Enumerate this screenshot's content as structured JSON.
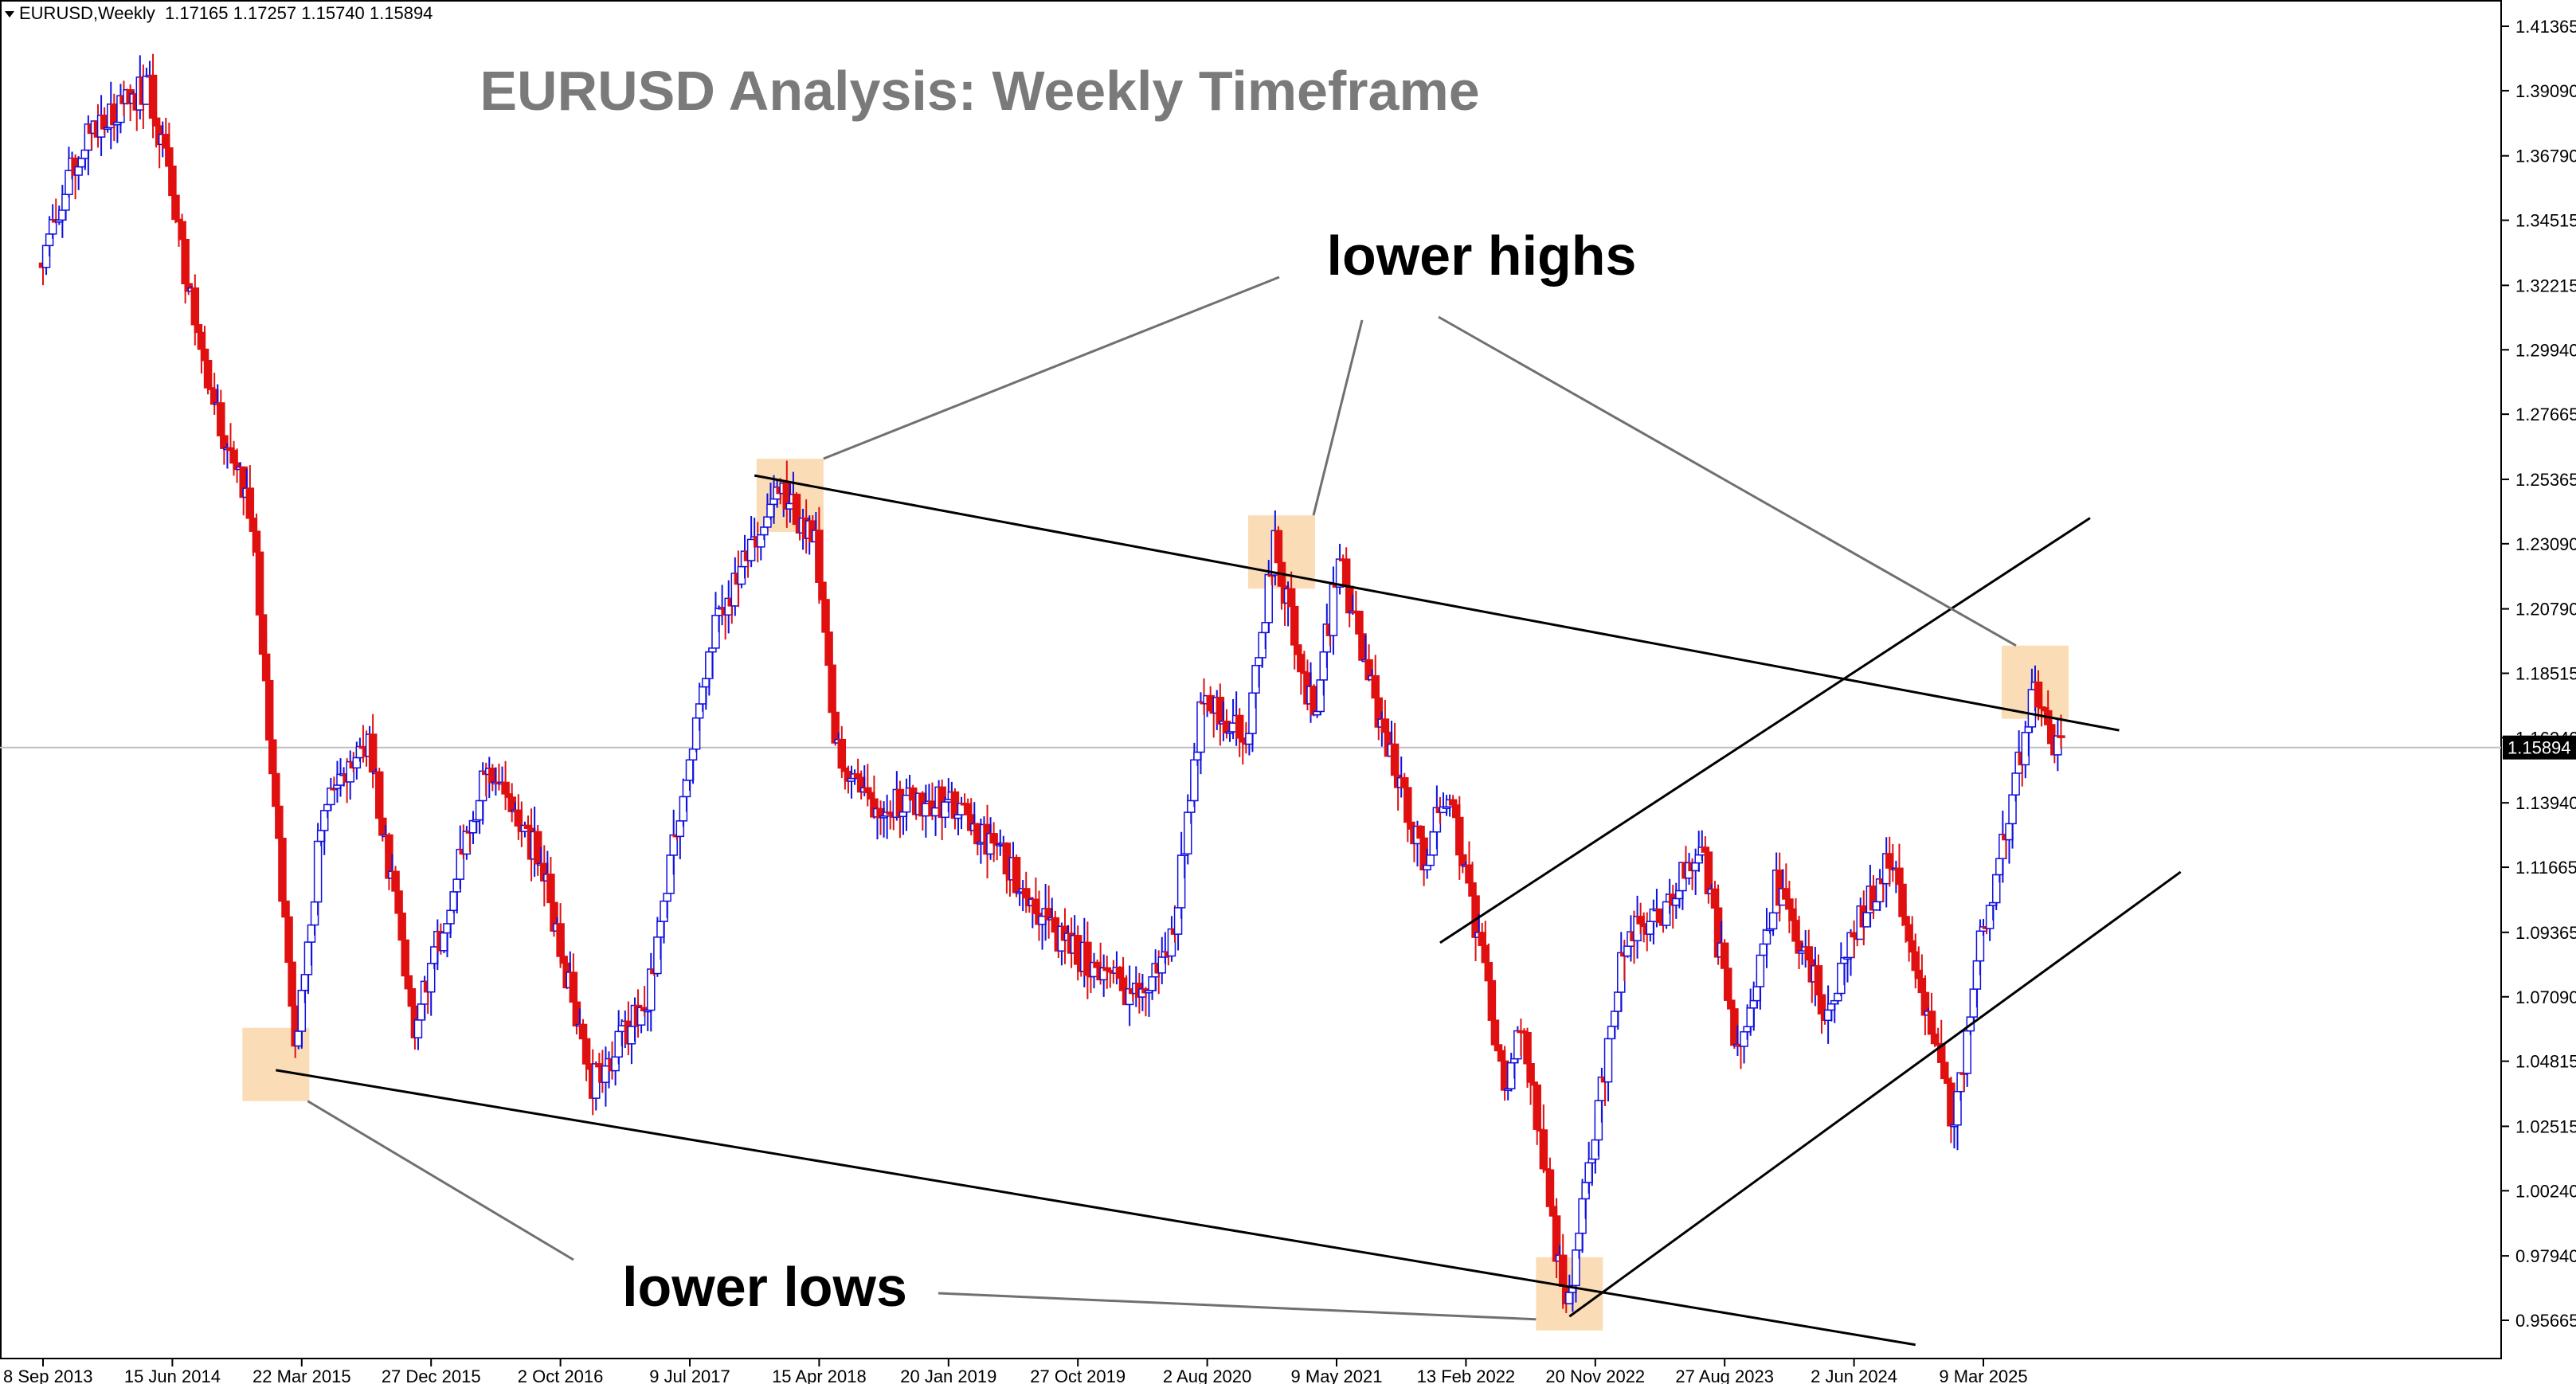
{
  "header": {
    "symbol": "EURUSD,Weekly",
    "ohlc": "1.17165 1.17257 1.15740 1.15894"
  },
  "colors": {
    "bull": "#1010e0",
    "bear": "#e01010",
    "highlight": "#f9d9ae",
    "trendline": "#000000",
    "pointer": "#707070",
    "title": "#7a7a7a",
    "price_line": "#c0c0c0"
  },
  "chart_data": {
    "type": "candlestick",
    "title": "EURUSD Analysis: Weekly Timeframe",
    "xlabel": "",
    "ylabel": "",
    "grid": false,
    "current_price": "1.15894",
    "y_ticks": [
      "1.41365",
      "1.39090",
      "1.36790",
      "1.34515",
      "1.32215",
      "1.29940",
      "1.27665",
      "1.25365",
      "1.23090",
      "1.20790",
      "1.18515",
      "1.16240",
      "1.13940",
      "1.11665",
      "1.09365",
      "1.07090",
      "1.04815",
      "1.02515",
      "1.00240",
      "0.97940",
      "0.95665"
    ],
    "x_ticks": [
      "8 Sep 2013",
      "15 Jun 2014",
      "22 Mar 2015",
      "27 Dec 2015",
      "2 Oct 2016",
      "9 Jul 2017",
      "15 Apr 2018",
      "20 Jan 2019",
      "27 Oct 2019",
      "2 Aug 2020",
      "9 May 2021",
      "13 Feb 2022",
      "20 Nov 2022",
      "27 Aug 2023",
      "2 Jun 2024",
      "9 Mar 2025"
    ],
    "x_tick_dates": [
      "2013-09-08",
      "2014-06-15",
      "2015-03-22",
      "2015-12-27",
      "2016-10-02",
      "2017-07-09",
      "2018-04-15",
      "2019-01-20",
      "2019-10-27",
      "2020-08-02",
      "2021-05-09",
      "2022-02-13",
      "2022-11-20",
      "2023-08-27",
      "2024-06-02",
      "2025-03-09"
    ],
    "price_path": [
      [
        "2013-09-08",
        1.33
      ],
      [
        "2013-12-01",
        1.37
      ],
      [
        "2014-03-15",
        1.388
      ],
      [
        "2014-05-04",
        1.392
      ],
      [
        "2014-06-15",
        1.36
      ],
      [
        "2014-09-01",
        1.29
      ],
      [
        "2014-12-14",
        1.24
      ],
      [
        "2015-03-15",
        1.05
      ],
      [
        "2015-05-17",
        1.14
      ],
      [
        "2015-08-23",
        1.16
      ],
      [
        "2015-11-29",
        1.06
      ],
      [
        "2016-05-01",
        1.15
      ],
      [
        "2016-08-28",
        1.12
      ],
      [
        "2016-12-18",
        1.04
      ],
      [
        "2017-04-16",
        1.07
      ],
      [
        "2017-07-09",
        1.15
      ],
      [
        "2017-09-10",
        1.2
      ],
      [
        "2018-01-28",
        1.25
      ],
      [
        "2018-04-15",
        1.23
      ],
      [
        "2018-05-27",
        1.16
      ],
      [
        "2018-08-12",
        1.14
      ],
      [
        "2019-01-20",
        1.14
      ],
      [
        "2019-05-26",
        1.12
      ],
      [
        "2019-10-01",
        1.09
      ],
      [
        "2020-03-20",
        1.07
      ],
      [
        "2020-05-24",
        1.09
      ],
      [
        "2020-08-02",
        1.18
      ],
      [
        "2020-11-01",
        1.16
      ],
      [
        "2021-01-03",
        1.23
      ],
      [
        "2021-03-28",
        1.17
      ],
      [
        "2021-05-23",
        1.225
      ],
      [
        "2021-08-15",
        1.17
      ],
      [
        "2021-11-21",
        1.12
      ],
      [
        "2022-01-16",
        1.145
      ],
      [
        "2022-05-15",
        1.04
      ],
      [
        "2022-06-26",
        1.06
      ],
      [
        "2022-09-25",
        0.96
      ],
      [
        "2022-10-16",
        0.98
      ],
      [
        "2023-01-29",
        1.09
      ],
      [
        "2023-04-23",
        1.1
      ],
      [
        "2023-07-16",
        1.125
      ],
      [
        "2023-10-01",
        1.05
      ],
      [
        "2023-12-24",
        1.11
      ],
      [
        "2024-04-14",
        1.065
      ],
      [
        "2024-06-02",
        1.09
      ],
      [
        "2024-08-25",
        1.12
      ],
      [
        "2024-10-27",
        1.08
      ],
      [
        "2025-01-12",
        1.025
      ],
      [
        "2025-03-09",
        1.09
      ],
      [
        "2025-05-04",
        1.13
      ],
      [
        "2025-07-06",
        1.18
      ],
      [
        "2025-08-10",
        1.16
      ],
      [
        "2025-08-24",
        1.159
      ]
    ],
    "trendlines": [
      {
        "name": "upper-trendline",
        "from": [
          "2017-11-26",
          1.255
        ],
        "to": [
          "2025-12-28",
          1.165
        ]
      },
      {
        "name": "lower-trendline",
        "from": [
          "2015-01-25",
          1.045
        ],
        "to": [
          "2024-10-13",
          0.948
        ]
      },
      {
        "name": "channel-upper-line",
        "from": [
          "2021-12-19",
          1.09
        ],
        "to": [
          "2025-10-26",
          1.24
        ]
      },
      {
        "name": "channel-lower-line",
        "from": [
          "2022-09-25",
          0.958
        ],
        "to": [
          "2026-05-10",
          1.115
        ]
      }
    ],
    "highlights": [
      {
        "name": "high-box-2018",
        "center": [
          "2018-02-11",
          1.248
        ]
      },
      {
        "name": "high-box-2021",
        "center": [
          "2021-01-10",
          1.228
        ]
      },
      {
        "name": "high-box-2025",
        "center": [
          "2025-06-29",
          1.182
        ]
      },
      {
        "name": "low-box-2015",
        "center": [
          "2015-01-25",
          1.047
        ]
      },
      {
        "name": "low-box-2022",
        "center": [
          "2022-09-25",
          0.966
        ]
      }
    ],
    "annotations": [
      {
        "name": "annotation-lower-highs",
        "text": "lower highs"
      },
      {
        "name": "annotation-lower-lows",
        "text": "lower lows"
      }
    ]
  }
}
